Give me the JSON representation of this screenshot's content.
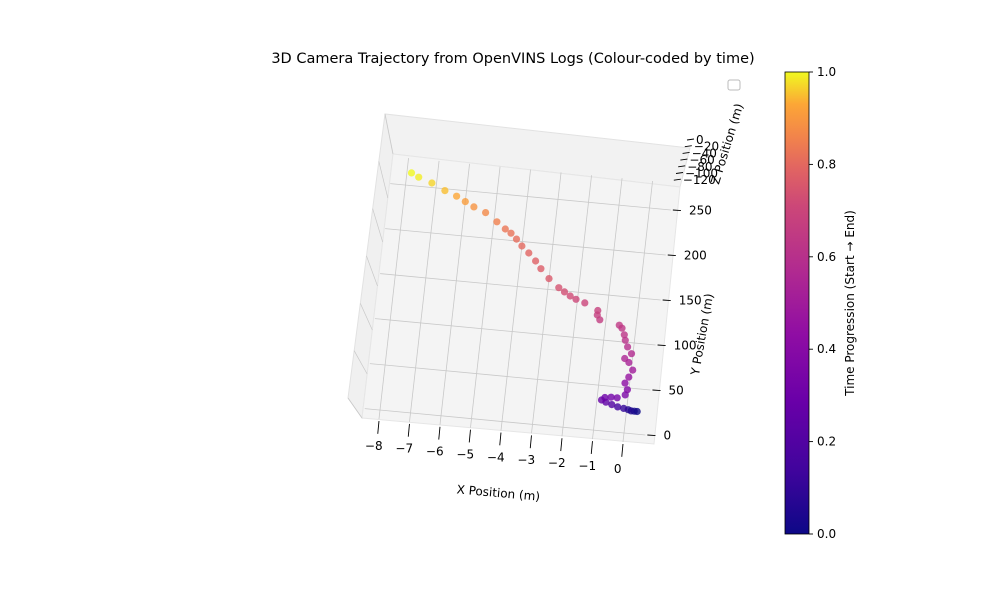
{
  "chart_data": {
    "type": "scatter3d",
    "title": "3D Camera Trajectory from OpenVINS Logs (Colour-coded by time)",
    "xlabel": "X Position (m)",
    "ylabel": "Y Position (m)",
    "zlabel": "Z Position (m)",
    "x_ticks": [
      "−8",
      "−7",
      "−6",
      "−5",
      "−4",
      "−3",
      "−2",
      "−1",
      "0"
    ],
    "y_ticks": [
      "0",
      "50",
      "100",
      "150",
      "200",
      "250"
    ],
    "z_ticks": [
      "0",
      "−20",
      "−40",
      "−60",
      "−80",
      "−100",
      "−120"
    ],
    "xlim": [
      -8.5,
      0.7
    ],
    "ylim": [
      -10,
      280
    ],
    "colormap": "plasma",
    "colorbar": {
      "label": "Time Progression (Start → End)",
      "ticks": [
        "0.0",
        "0.2",
        "0.4",
        "0.6",
        "0.8",
        "1.0"
      ],
      "range": [
        0,
        1
      ]
    },
    "legend": {
      "placement": "upper-right",
      "entries": []
    },
    "grid": true,
    "points": [
      {
        "x": 0.35,
        "y": 25,
        "t": 0.0
      },
      {
        "x": 0.25,
        "y": 25,
        "t": 0.02
      },
      {
        "x": 0.15,
        "y": 25,
        "t": 0.04
      },
      {
        "x": 0.05,
        "y": 26,
        "t": 0.06
      },
      {
        "x": -0.1,
        "y": 27,
        "t": 0.1
      },
      {
        "x": -0.3,
        "y": 28,
        "t": 0.15
      },
      {
        "x": -0.5,
        "y": 30,
        "t": 0.2
      },
      {
        "x": -0.7,
        "y": 32,
        "t": 0.25
      },
      {
        "x": -0.85,
        "y": 34,
        "t": 0.28
      },
      {
        "x": -0.75,
        "y": 37,
        "t": 0.3
      },
      {
        "x": -0.55,
        "y": 38,
        "t": 0.32
      },
      {
        "x": -0.35,
        "y": 38,
        "t": 0.33
      },
      {
        "x": -0.1,
        "y": 42,
        "t": 0.35
      },
      {
        "x": -0.05,
        "y": 48,
        "t": 0.38
      },
      {
        "x": -0.15,
        "y": 55,
        "t": 0.42
      },
      {
        "x": -0.05,
        "y": 62,
        "t": 0.46
      },
      {
        "x": 0.05,
        "y": 70,
        "t": 0.5
      },
      {
        "x": -0.1,
        "y": 78,
        "t": 0.53
      },
      {
        "x": -0.25,
        "y": 82,
        "t": 0.55
      },
      {
        "x": -0.05,
        "y": 88,
        "t": 0.57
      },
      {
        "x": -0.2,
        "y": 95,
        "t": 0.59
      },
      {
        "x": -0.3,
        "y": 102,
        "t": 0.61
      },
      {
        "x": -0.35,
        "y": 108,
        "t": 0.62
      },
      {
        "x": -0.45,
        "y": 115,
        "t": 0.63
      },
      {
        "x": -0.55,
        "y": 118,
        "t": 0.64
      },
      {
        "x": -1.2,
        "y": 122,
        "t": 0.66
      },
      {
        "x": -1.3,
        "y": 127,
        "t": 0.67
      },
      {
        "x": -1.3,
        "y": 132,
        "t": 0.68
      },
      {
        "x": -1.75,
        "y": 139,
        "t": 0.7
      },
      {
        "x": -2.05,
        "y": 142,
        "t": 0.71
      },
      {
        "x": -2.25,
        "y": 145,
        "t": 0.72
      },
      {
        "x": -2.45,
        "y": 149,
        "t": 0.73
      },
      {
        "x": -2.65,
        "y": 153,
        "t": 0.74
      },
      {
        "x": -3.0,
        "y": 162,
        "t": 0.76
      },
      {
        "x": -3.3,
        "y": 172,
        "t": 0.77
      },
      {
        "x": -3.5,
        "y": 180,
        "t": 0.78
      },
      {
        "x": -3.75,
        "y": 188,
        "t": 0.79
      },
      {
        "x": -4.0,
        "y": 195,
        "t": 0.8
      },
      {
        "x": -4.2,
        "y": 202,
        "t": 0.81
      },
      {
        "x": -4.4,
        "y": 208,
        "t": 0.82
      },
      {
        "x": -4.6,
        "y": 212,
        "t": 0.83
      },
      {
        "x": -4.9,
        "y": 219,
        "t": 0.85
      },
      {
        "x": -5.3,
        "y": 228,
        "t": 0.87
      },
      {
        "x": -5.7,
        "y": 233,
        "t": 0.89
      },
      {
        "x": -6.0,
        "y": 238,
        "t": 0.91
      },
      {
        "x": -6.3,
        "y": 243,
        "t": 0.93
      },
      {
        "x": -6.7,
        "y": 248,
        "t": 0.95
      },
      {
        "x": -7.15,
        "y": 255,
        "t": 0.97
      },
      {
        "x": -7.6,
        "y": 260,
        "t": 0.99
      },
      {
        "x": -7.85,
        "y": 264,
        "t": 1.0
      }
    ]
  }
}
